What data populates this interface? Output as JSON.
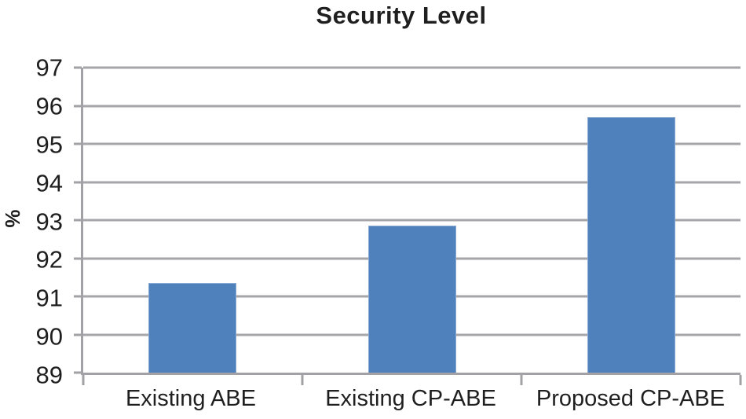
{
  "chart_data": {
    "type": "bar",
    "title": "Security Level",
    "xlabel": "",
    "ylabel": "%",
    "categories": [
      "Existing ABE",
      "Existing CP-ABE",
      "Proposed CP-ABE"
    ],
    "values": [
      91.35,
      92.85,
      95.7
    ],
    "ylim": [
      89,
      97
    ],
    "yticks": [
      97,
      96,
      95,
      94,
      93,
      92,
      91,
      90,
      89
    ],
    "grid": "horizontal gridlines on",
    "legend_position": "none",
    "bar_color": "#4f81bd",
    "bar_border_color": "#8aa9d2",
    "gridline_color": "#a6a6aa",
    "axis_color": "#a2a2a6",
    "text_color": "#1f1f1f"
  }
}
